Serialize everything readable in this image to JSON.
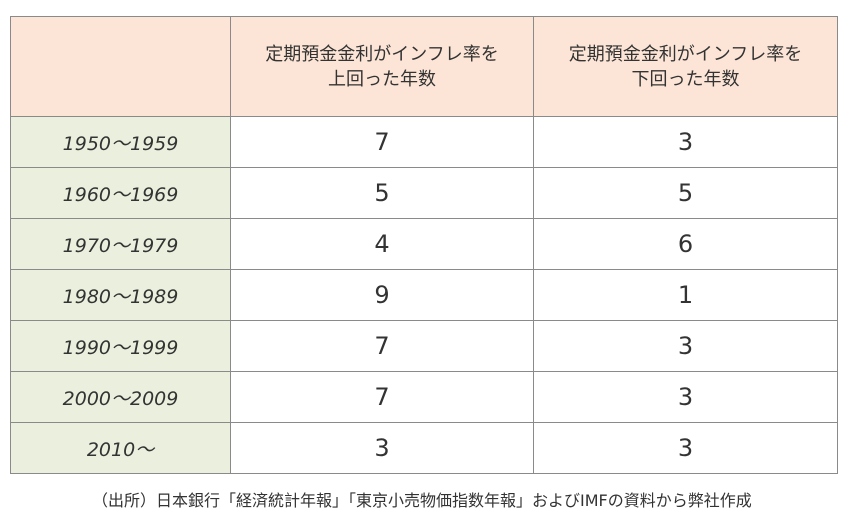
{
  "table": {
    "header": {
      "corner": "",
      "col_above": [
        "定期預金金利がインフレ率を",
        "上回った年数"
      ],
      "col_below": [
        "定期預金金利がインフレ率を",
        "下回った年数"
      ]
    },
    "rows": [
      {
        "period": "1950～1959",
        "above": "7",
        "below": "3"
      },
      {
        "period": "1960～1969",
        "above": "5",
        "below": "5"
      },
      {
        "period": "1970～1979",
        "above": "4",
        "below": "6"
      },
      {
        "period": "1980～1989",
        "above": "9",
        "below": "1"
      },
      {
        "period": "1990～1999",
        "above": "7",
        "below": "3"
      },
      {
        "period": "2000～2009",
        "above": "7",
        "below": "3"
      },
      {
        "period": "2010～",
        "above": "3",
        "below": "3"
      }
    ]
  },
  "source_note": "（出所）日本銀行「経済統計年報」「東京小売物価指数年報」およびIMFの資料から弊社作成",
  "colors": {
    "header_bg": "#fce5d6",
    "period_bg": "#eaf0dd",
    "border": "#8a8a8a"
  }
}
